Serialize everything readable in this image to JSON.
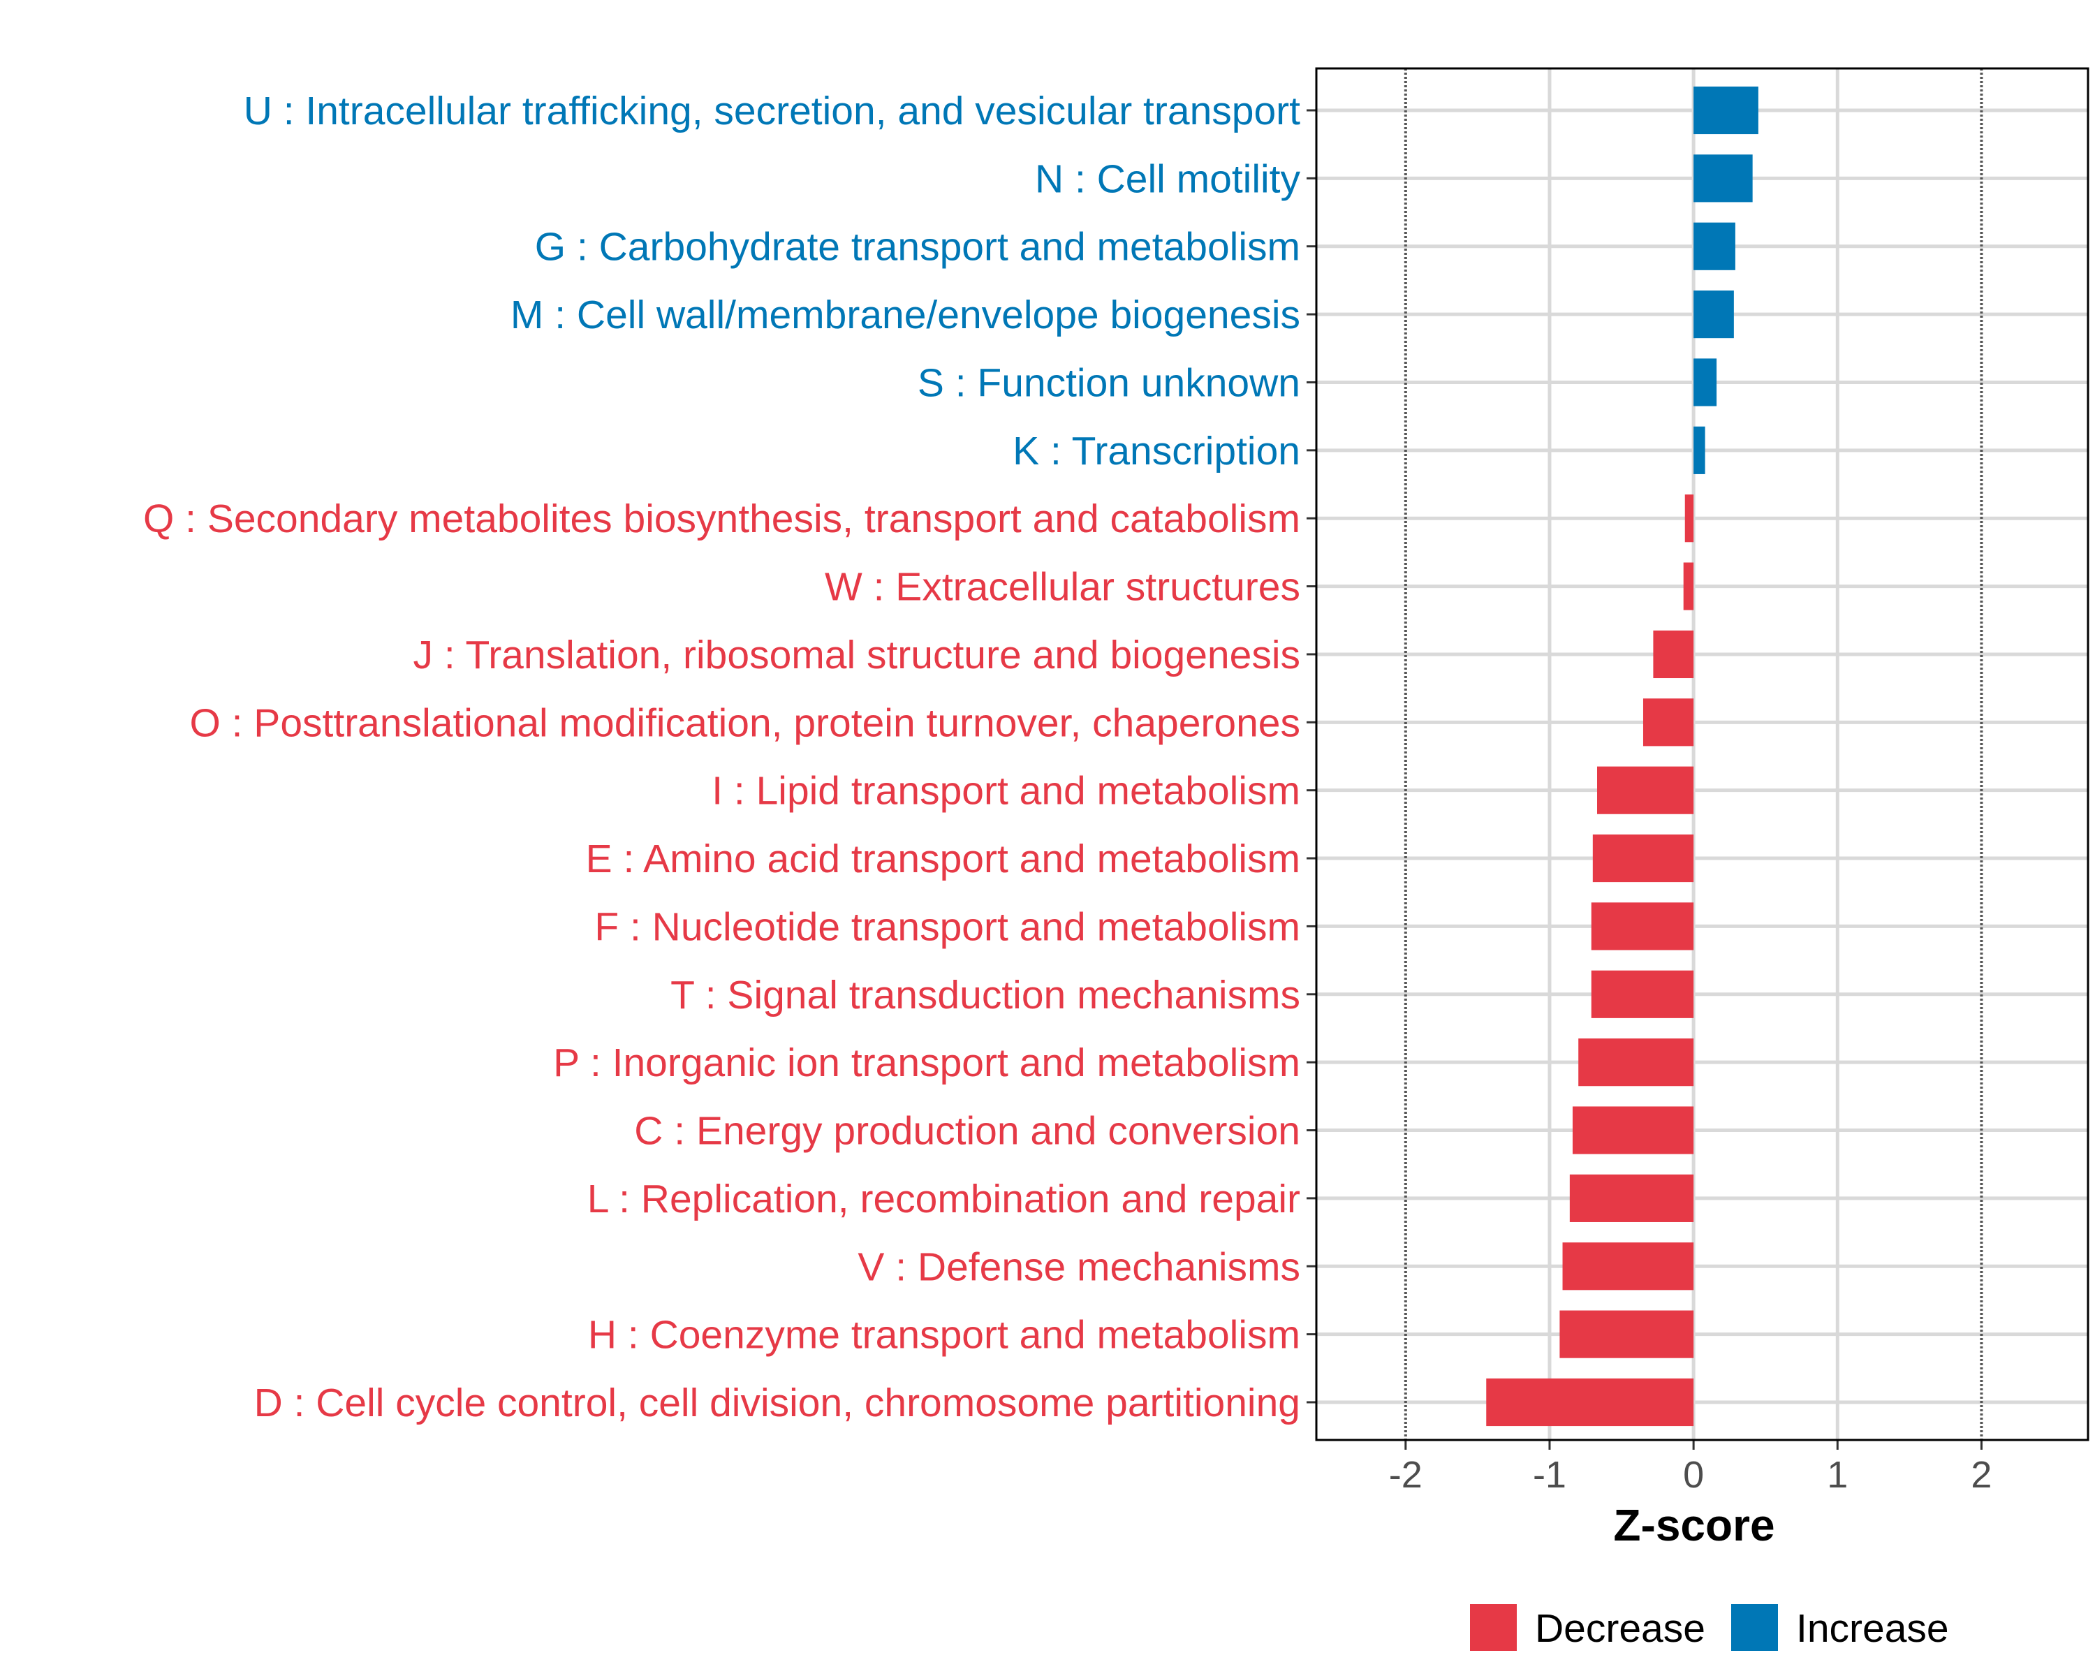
{
  "chart_data": {
    "type": "bar",
    "orientation": "horizontal",
    "title": "",
    "xlabel": "Z-score",
    "ylabel": "",
    "xlim": [
      -2.62,
      2.74
    ],
    "xticks": [
      -2,
      -1,
      0,
      1,
      2
    ],
    "xtick_labels": [
      "-2",
      "-1",
      "0",
      "1",
      "2"
    ],
    "reference_lines": [
      -2,
      2
    ],
    "grid": true,
    "legend_position": "bottom",
    "legend": [
      {
        "label": "Decrease",
        "color": "#E63946"
      },
      {
        "label": "Increase",
        "color": "#0077B6"
      }
    ],
    "categories": [
      "U : Intracellular trafficking, secretion, and vesicular transport",
      "N : Cell motility",
      "G : Carbohydrate transport and metabolism",
      "M : Cell wall/membrane/envelope biogenesis",
      "S : Function unknown",
      "K : Transcription",
      "Q : Secondary metabolites biosynthesis, transport and catabolism",
      "W : Extracellular structures",
      "J : Translation, ribosomal structure and biogenesis",
      "O : Posttranslational modification, protein turnover, chaperones",
      "I : Lipid transport and metabolism",
      "E : Amino acid transport and metabolism",
      "F : Nucleotide transport and metabolism",
      "T : Signal transduction mechanisms",
      "P : Inorganic ion transport and metabolism",
      "C : Energy production and conversion",
      "L : Replication, recombination and repair",
      "V : Defense mechanisms",
      "H : Coenzyme transport and metabolism",
      "D : Cell cycle control, cell division, chromosome partitioning"
    ],
    "values": [
      0.45,
      0.41,
      0.29,
      0.28,
      0.16,
      0.08,
      -0.06,
      -0.07,
      -0.28,
      -0.35,
      -0.67,
      -0.7,
      -0.71,
      -0.71,
      -0.8,
      -0.84,
      -0.86,
      -0.91,
      -0.93,
      -1.44
    ]
  }
}
